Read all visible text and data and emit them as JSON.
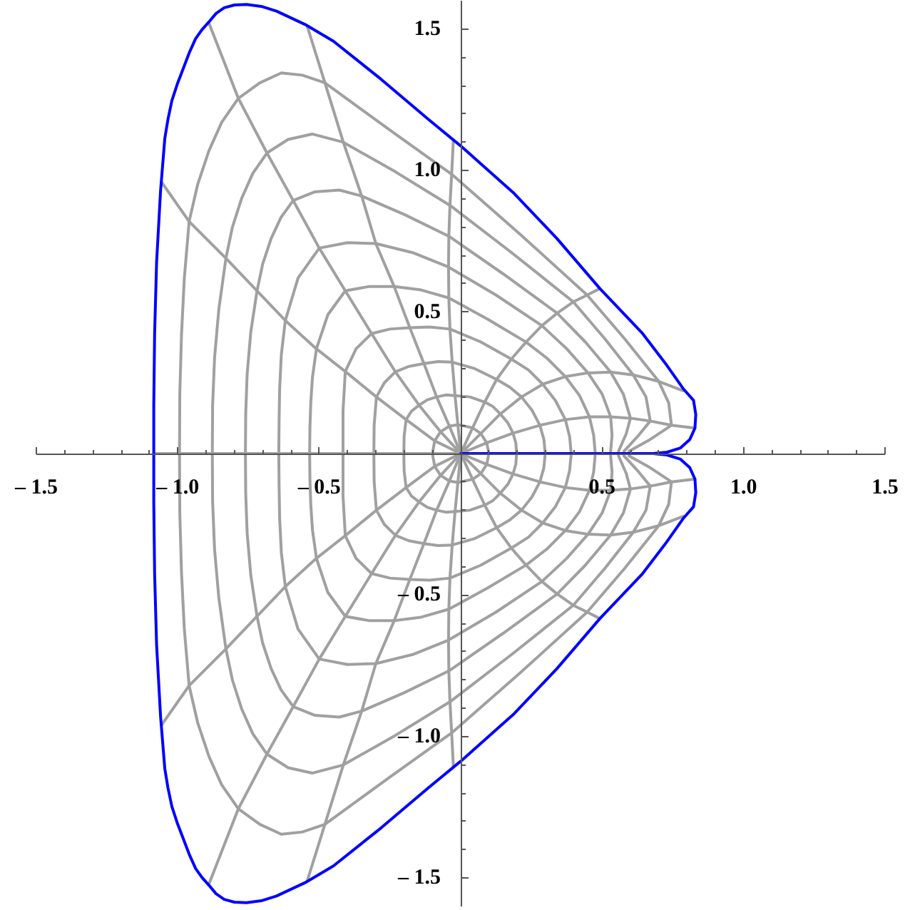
{
  "chart_data": {
    "type": "line",
    "xlim": [
      -1.5,
      1.5
    ],
    "ylim": [
      -1.6,
      1.6
    ],
    "xticks": [
      {
        "value": -1.5,
        "label": "– 1.5"
      },
      {
        "value": -1.4,
        "label": null
      },
      {
        "value": -1.3,
        "label": null
      },
      {
        "value": -1.2,
        "label": null
      },
      {
        "value": -1.1,
        "label": null
      },
      {
        "value": -1,
        "label": "– 1.0"
      },
      {
        "value": -0.9,
        "label": null
      },
      {
        "value": -0.8,
        "label": null
      },
      {
        "value": -0.7,
        "label": null
      },
      {
        "value": -0.6,
        "label": null
      },
      {
        "value": -0.5,
        "label": "– 0.5"
      },
      {
        "value": -0.4,
        "label": null
      },
      {
        "value": -0.3,
        "label": null
      },
      {
        "value": -0.2,
        "label": null
      },
      {
        "value": -0.1,
        "label": null
      },
      {
        "value": 0.1,
        "label": null
      },
      {
        "value": 0.2,
        "label": null
      },
      {
        "value": 0.3,
        "label": null
      },
      {
        "value": 0.4,
        "label": null
      },
      0.5,
      {
        "value": 0.6,
        "label": null
      },
      {
        "value": 0.7,
        "label": null
      },
      {
        "value": 0.8,
        "label": null
      },
      {
        "value": 0.9,
        "label": null
      },
      {
        "value": 1,
        "label": "1.0"
      },
      {
        "value": 1.1,
        "label": null
      },
      {
        "value": 1.2,
        "label": null
      },
      {
        "value": 1.3,
        "label": null
      },
      {
        "value": 1.4,
        "label": null
      },
      1.5
    ],
    "yticks": [
      {
        "value": -1.5,
        "label": "– 1.5"
      },
      {
        "value": -1.4,
        "label": null
      },
      {
        "value": -1.3,
        "label": null
      },
      {
        "value": -1.2,
        "label": null
      },
      {
        "value": -1.1,
        "label": null
      },
      {
        "value": -1,
        "label": "– 1.0"
      },
      {
        "value": -0.9,
        "label": null
      },
      {
        "value": -0.8,
        "label": null
      },
      {
        "value": -0.7,
        "label": null
      },
      {
        "value": -0.6,
        "label": null
      },
      {
        "value": -0.5,
        "label": "– 0.5"
      },
      {
        "value": -0.4,
        "label": null
      },
      {
        "value": -0.3,
        "label": null
      },
      {
        "value": -0.2,
        "label": null
      },
      {
        "value": -0.1,
        "label": null
      },
      {
        "value": 0.1,
        "label": null
      },
      {
        "value": 0.2,
        "label": null
      },
      {
        "value": 0.3,
        "label": null
      },
      {
        "value": 0.4,
        "label": null
      },
      0.5,
      {
        "value": 0.6,
        "label": null
      },
      {
        "value": 0.7,
        "label": null
      },
      {
        "value": 0.8,
        "label": null
      },
      {
        "value": 0.9,
        "label": null
      },
      {
        "value": 1,
        "label": "1.0"
      },
      {
        "value": 1.1,
        "label": null
      },
      {
        "value": 1.2,
        "label": null
      },
      {
        "value": 1.3,
        "label": null
      },
      {
        "value": 1.4,
        "label": null
      },
      1.5
    ],
    "series": [
      {
        "color": "#a0a0a0",
        "x": [
          0.098,
          0.092,
          0.071,
          0.042,
          -0.01,
          -0.04,
          -0.071,
          -0.092,
          -0.1,
          -0.092,
          -0.071,
          -0.04,
          -0.01,
          0.042,
          0.071,
          0.092,
          0.098
        ],
        "values": [
          0.008,
          0.038,
          0.071,
          0.091,
          0.102,
          0.097,
          0.077,
          0.045,
          0,
          -0.045,
          -0.077,
          -0.097,
          -0.102,
          -0.091,
          -0.071,
          -0.038,
          -0.008
        ]
      },
      {
        "color": "#a0a0a0",
        "x": [
          0.197,
          0.195,
          0.185,
          0.167,
          0.14,
          0.114,
          0.085,
          0.033,
          -0.02,
          -0.053,
          -0.085,
          -0.118,
          -0.147,
          -0.174,
          -0.193,
          -0.2,
          -0.201,
          -0.2,
          -0.193,
          -0.174,
          -0.147,
          -0.118,
          -0.085,
          -0.053,
          -0.02,
          0.033,
          0.085,
          0.114,
          0.14,
          0.167,
          0.185,
          0.195,
          0.197
        ],
        "values": [
          0.008,
          0.037,
          0.072,
          0.108,
          0.14,
          0.166,
          0.182,
          0.2,
          0.205,
          0.207,
          0.2,
          0.19,
          0.171,
          0.15,
          0.12,
          0.062,
          0,
          -0.062,
          -0.12,
          -0.15,
          -0.171,
          -0.19,
          -0.2,
          -0.207,
          -0.205,
          -0.2,
          -0.182,
          -0.166,
          -0.14,
          -0.108,
          -0.072,
          -0.037,
          -0.008
        ]
      },
      {
        "color": "#a0a0a0",
        "x": [
          0.298,
          0.294,
          0.28,
          0.252,
          0.215,
          0.173,
          0.127,
          0.05,
          -0.03,
          -0.08,
          -0.13,
          -0.183,
          -0.231,
          -0.27,
          -0.298,
          -0.306,
          -0.307,
          -0.306,
          -0.298,
          -0.27,
          -0.231,
          -0.183,
          -0.13,
          -0.08,
          -0.03,
          0.05,
          0.127,
          0.173,
          0.215,
          0.252,
          0.28,
          0.294,
          0.298
        ],
        "values": [
          0.008,
          0.05,
          0.1,
          0.153,
          0.2,
          0.235,
          0.262,
          0.3,
          0.323,
          0.325,
          0.318,
          0.308,
          0.289,
          0.25,
          0.2,
          0.1,
          0,
          -0.1,
          -0.2,
          -0.25,
          -0.289,
          -0.308,
          -0.318,
          -0.325,
          -0.323,
          -0.3,
          -0.262,
          -0.235,
          -0.2,
          -0.153,
          -0.1,
          -0.05,
          -0.008
        ]
      },
      {
        "color": "#a0a0a0",
        "x": [
          0.39,
          0.385,
          0.37,
          0.335,
          0.29,
          0.24,
          0.179,
          0.07,
          -0.038,
          -0.11,
          -0.18,
          -0.25,
          -0.315,
          -0.37,
          -0.408,
          -0.416,
          -0.416,
          -0.416,
          -0.408,
          -0.37,
          -0.315,
          -0.25,
          -0.18,
          -0.11,
          -0.038,
          0.07,
          0.179,
          0.24,
          0.29,
          0.335,
          0.37,
          0.385,
          0.39
        ],
        "values": [
          0.008,
          0.06,
          0.12,
          0.187,
          0.245,
          0.295,
          0.334,
          0.395,
          0.44,
          0.447,
          0.445,
          0.44,
          0.424,
          0.37,
          0.29,
          0.15,
          0,
          -0.15,
          -0.29,
          -0.37,
          -0.424,
          -0.44,
          -0.445,
          -0.447,
          -0.44,
          -0.395,
          -0.334,
          -0.295,
          -0.245,
          -0.187,
          -0.12,
          -0.06,
          -0.008
        ]
      },
      {
        "color": "#a0a0a0",
        "x": [
          0.475,
          0.47,
          0.455,
          0.42,
          0.37,
          0.305,
          0.231,
          0.095,
          -0.042,
          -0.14,
          -0.235,
          -0.325,
          -0.408,
          -0.47,
          -0.51,
          -0.524,
          -0.53,
          -0.533,
          -0.534,
          -0.533,
          -0.53,
          -0.524,
          -0.51,
          -0.47,
          -0.408,
          -0.325,
          -0.235,
          -0.14,
          -0.042,
          0.095,
          0.231,
          0.305,
          0.37,
          0.42,
          0.455,
          0.47,
          0.475
        ],
        "values": [
          0.008,
          0.065,
          0.13,
          0.205,
          0.272,
          0.337,
          0.394,
          0.475,
          0.55,
          0.578,
          0.59,
          0.59,
          0.575,
          0.49,
          0.37,
          0.27,
          0.18,
          0.09,
          0,
          -0.09,
          -0.18,
          -0.27,
          -0.37,
          -0.49,
          -0.575,
          -0.59,
          -0.59,
          -0.578,
          -0.55,
          -0.475,
          -0.394,
          -0.337,
          -0.272,
          -0.205,
          -0.13,
          -0.065,
          -0.008
        ]
      },
      {
        "color": "#a0a0a0",
        "x": [
          0.53,
          0.535,
          0.53,
          0.5,
          0.45,
          0.375,
          0.287,
          0.125,
          -0.043,
          -0.17,
          -0.3,
          -0.4,
          -0.5,
          -0.575,
          -0.62,
          -0.634,
          -0.64,
          -0.642,
          -0.643,
          -0.642,
          -0.64,
          -0.634,
          -0.62,
          -0.575,
          -0.5,
          -0.4,
          -0.3,
          -0.17,
          -0.043,
          0.125,
          0.287,
          0.375,
          0.45,
          0.5,
          0.53,
          0.535,
          0.53
        ],
        "values": [
          0.008,
          0.065,
          0.13,
          0.21,
          0.285,
          0.37,
          0.452,
          0.56,
          0.659,
          0.71,
          0.742,
          0.745,
          0.726,
          0.62,
          0.47,
          0.35,
          0.23,
          0.115,
          0,
          -0.115,
          -0.23,
          -0.35,
          -0.47,
          -0.62,
          -0.726,
          -0.745,
          -0.742,
          -0.71,
          -0.659,
          -0.56,
          -0.452,
          -0.37,
          -0.285,
          -0.21,
          -0.13,
          -0.065,
          -0.008
        ]
      },
      {
        "color": "#a0a0a0",
        "x": [
          0.558,
          0.585,
          0.6,
          0.575,
          0.53,
          0.44,
          0.341,
          0.15,
          -0.042,
          -0.2,
          -0.35,
          -0.429,
          -0.515,
          -0.592,
          -0.635,
          -0.67,
          -0.7,
          -0.72,
          -0.742,
          -0.755,
          -0.76,
          -0.761,
          -0.76,
          -0.755,
          -0.742,
          -0.72,
          -0.7,
          -0.67,
          -0.635,
          -0.592,
          -0.515,
          -0.429,
          -0.35,
          -0.2,
          -0.042,
          0.15,
          0.341,
          0.44,
          0.53,
          0.575,
          0.6,
          0.585,
          0.558
        ],
        "values": [
          0.008,
          0.07,
          0.125,
          0.21,
          0.288,
          0.395,
          0.496,
          0.635,
          0.768,
          0.845,
          0.91,
          0.931,
          0.925,
          0.894,
          0.835,
          0.76,
          0.67,
          0.575,
          0.43,
          0.28,
          0.14,
          0,
          -0.14,
          -0.28,
          -0.43,
          -0.575,
          -0.67,
          -0.76,
          -0.835,
          -0.894,
          -0.925,
          -0.931,
          -0.91,
          -0.845,
          -0.768,
          -0.635,
          -0.496,
          -0.395,
          -0.288,
          -0.21,
          -0.125,
          -0.07,
          -0.008
        ]
      },
      {
        "color": "#a0a0a0",
        "x": [
          0.577,
          0.625,
          0.67,
          0.655,
          0.61,
          0.51,
          0.398,
          0.18,
          -0.038,
          -0.23,
          -0.415,
          -0.525,
          -0.61,
          -0.685,
          -0.735,
          -0.775,
          -0.807,
          -0.83,
          -0.855,
          -0.87,
          -0.877,
          -0.878,
          -0.877,
          -0.87,
          -0.855,
          -0.83,
          -0.807,
          -0.775,
          -0.735,
          -0.685,
          -0.61,
          -0.525,
          -0.415,
          -0.23,
          -0.038,
          0.18,
          0.398,
          0.51,
          0.61,
          0.655,
          0.67,
          0.625,
          0.577
        ],
        "values": [
          0.008,
          0.06,
          0.115,
          0.2,
          0.278,
          0.405,
          0.536,
          0.71,
          0.877,
          0.995,
          1.1,
          1.129,
          1.11,
          1.062,
          0.99,
          0.9,
          0.8,
          0.69,
          0.51,
          0.34,
          0.17,
          0,
          -0.17,
          -0.34,
          -0.51,
          -0.69,
          -0.8,
          -0.9,
          -0.99,
          -1.062,
          -1.11,
          -1.129,
          -1.1,
          -0.995,
          -0.877,
          -0.71,
          -0.536,
          -0.405,
          -0.278,
          -0.2,
          -0.115,
          -0.06,
          -0.008
        ]
      },
      {
        "color": "#a0a0a0",
        "x": [
          0.595,
          0.67,
          0.745,
          0.735,
          0.7,
          0.58,
          0.447,
          0.21,
          -0.032,
          -0.26,
          -0.48,
          -0.56,
          -0.634,
          -0.71,
          -0.786,
          -0.845,
          -0.89,
          -0.93,
          -0.96,
          -0.977,
          -0.987,
          -0.993,
          -0.994,
          -0.993,
          -0.987,
          -0.977,
          -0.96,
          -0.93,
          -0.89,
          -0.845,
          -0.786,
          -0.71,
          -0.634,
          -0.56,
          -0.48,
          -0.26,
          -0.032,
          0.21,
          0.447,
          0.58,
          0.7,
          0.735,
          0.745,
          0.67,
          0.595
        ],
        "values": [
          0.008,
          0.05,
          0.1,
          0.18,
          0.255,
          0.405,
          0.56,
          0.775,
          0.987,
          1.15,
          1.31,
          1.337,
          1.345,
          1.31,
          1.255,
          1.17,
          1.07,
          0.95,
          0.82,
          0.62,
          0.42,
          0.21,
          0,
          -0.21,
          -0.42,
          -0.62,
          -0.82,
          -0.95,
          -1.07,
          -1.17,
          -1.255,
          -1.31,
          -1.345,
          -1.337,
          -1.31,
          -1.15,
          -0.987,
          -0.775,
          -0.56,
          -0.405,
          -0.255,
          -0.18,
          -0.1,
          -0.05,
          -0.008
        ]
      },
      {
        "color": "#a0a0a0",
        "x": [
          0.828,
          0.745,
          0.67,
          0.6,
          0.53,
          0.455,
          0.37,
          0.28,
          0.185,
          0.092,
          0,
          -0.092,
          -0.193,
          -0.298,
          -0.408,
          -0.51,
          -0.62,
          -0.72,
          -0.83,
          -0.96,
          -1.058
        ],
        "values": [
          0.09,
          0.1,
          0.115,
          0.125,
          0.13,
          0.13,
          0.12,
          0.1,
          0.072,
          0.038,
          0,
          -0.045,
          -0.12,
          -0.2,
          -0.29,
          -0.37,
          -0.47,
          -0.575,
          -0.69,
          -0.82,
          -0.96
        ]
      },
      {
        "color": "#a0a0a0",
        "x": [
          0.786,
          0.7,
          0.61,
          0.53,
          0.45,
          0.37,
          0.29,
          0.215,
          0.14,
          0.071,
          0,
          -0.071,
          -0.147,
          -0.231,
          -0.315,
          -0.408,
          -0.5,
          -0.592,
          -0.685,
          -0.786,
          -0.891
        ],
        "values": [
          0.222,
          0.255,
          0.278,
          0.288,
          0.285,
          0.272,
          0.245,
          0.2,
          0.14,
          0.071,
          0,
          -0.077,
          -0.171,
          -0.289,
          -0.424,
          -0.575,
          -0.726,
          -0.894,
          -1.062,
          -1.255,
          -1.524
        ]
      },
      {
        "color": "#a0a0a0",
        "x": [
          0.492,
          0.447,
          0.398,
          0.341,
          0.287,
          0.231,
          0.179,
          0.127,
          0.085,
          0.042,
          0,
          -0.04,
          -0.085,
          -0.13,
          -0.18,
          -0.235,
          -0.3,
          -0.35,
          -0.415,
          -0.48,
          -0.542
        ],
        "values": [
          0.583,
          0.56,
          0.536,
          0.496,
          0.452,
          0.394,
          0.334,
          0.262,
          0.182,
          0.091,
          0,
          -0.097,
          -0.2,
          -0.318,
          -0.445,
          -0.59,
          -0.742,
          -0.91,
          -1.1,
          -1.31,
          -1.508
        ]
      },
      {
        "color": "#a0a0a0",
        "x": [
          -0.026,
          -0.032,
          -0.038,
          -0.042,
          -0.043,
          -0.042,
          -0.038,
          -0.03,
          -0.02,
          -0.01,
          0,
          -0.01,
          -0.02,
          -0.03,
          -0.038,
          -0.042,
          -0.043,
          -0.042,
          -0.038,
          -0.032,
          -0.026
        ],
        "values": [
          1.105,
          0.987,
          0.877,
          0.768,
          0.659,
          0.55,
          0.44,
          0.323,
          0.205,
          0.102,
          0,
          -0.102,
          -0.205,
          -0.323,
          -0.44,
          -0.55,
          -0.659,
          -0.768,
          -0.877,
          -0.987,
          -1.105
        ]
      },
      {
        "color": "#a0a0a0",
        "x": [
          -0.542,
          -0.48,
          -0.415,
          -0.35,
          -0.3,
          -0.235,
          -0.18,
          -0.13,
          -0.085,
          -0.04,
          0,
          0.042,
          0.085,
          0.127,
          0.179,
          0.231,
          0.287,
          0.341,
          0.398,
          0.447,
          0.492
        ],
        "values": [
          1.508,
          1.31,
          1.1,
          0.91,
          0.742,
          0.59,
          0.445,
          0.318,
          0.2,
          0.097,
          0,
          -0.091,
          -0.182,
          -0.262,
          -0.334,
          -0.394,
          -0.452,
          -0.496,
          -0.536,
          -0.56,
          -0.583
        ]
      },
      {
        "color": "#a0a0a0",
        "x": [
          -0.891,
          -0.786,
          -0.685,
          -0.592,
          -0.5,
          -0.408,
          -0.315,
          -0.231,
          -0.147,
          -0.071,
          0,
          0.071,
          0.14,
          0.215,
          0.29,
          0.37,
          0.45,
          0.53,
          0.61,
          0.7,
          0.786
        ],
        "values": [
          1.524,
          1.255,
          1.062,
          0.894,
          0.726,
          0.575,
          0.424,
          0.289,
          0.171,
          0.077,
          0,
          -0.071,
          -0.14,
          -0.2,
          -0.245,
          -0.272,
          -0.285,
          -0.288,
          -0.278,
          -0.255,
          -0.222
        ]
      },
      {
        "color": "#a0a0a0",
        "x": [
          -1.058,
          -0.96,
          -0.83,
          -0.72,
          -0.62,
          -0.51,
          -0.408,
          -0.298,
          -0.193,
          -0.092,
          0,
          0.092,
          0.185,
          0.28,
          0.37,
          0.455,
          0.53,
          0.6,
          0.67,
          0.745,
          0.828
        ],
        "values": [
          0.96,
          0.82,
          0.69,
          0.575,
          0.47,
          0.37,
          0.29,
          0.2,
          0.12,
          0.045,
          0,
          -0.038,
          -0.072,
          -0.1,
          -0.12,
          -0.13,
          -0.13,
          -0.125,
          -0.115,
          -0.1,
          -0.09
        ]
      },
      {
        "color": "#a0a0a0",
        "x": [
          0,
          -1.085
        ],
        "values": [
          0,
          0
        ]
      },
      {
        "color": "#0000ff",
        "x": [
          0,
          0.68,
          0.73,
          0.777,
          0.81,
          0.828,
          0.831,
          0.823,
          0.786,
          0.727,
          0.643,
          0.492,
          0.34,
          0.189,
          0,
          -0.113,
          -0.282,
          -0.45,
          -0.55,
          -0.651,
          -0.705,
          -0.757,
          -0.8,
          -0.836,
          -0.865,
          -0.891,
          -0.915,
          -0.937,
          -0.96,
          -0.979,
          -1.002,
          -1.021,
          -1.035,
          -1.046,
          -1.061,
          -1.075,
          -1.082,
          -1.085,
          -1.085,
          -1.085,
          -1.082,
          -1.075,
          -1.061,
          -1.046,
          -1.035,
          -1.021,
          -1.002,
          -0.979,
          -0.96,
          -0.937,
          -0.915,
          -0.891,
          -0.865,
          -0.836,
          -0.8,
          -0.757,
          -0.705,
          -0.651,
          -0.55,
          -0.45,
          -0.282,
          -0.113,
          0,
          0.189,
          0.34,
          0.492,
          0.643,
          0.727,
          0.786,
          0.823,
          0.831,
          0.828,
          0.81,
          0.777,
          0.73,
          0.68
        ],
        "values": [
          0,
          0,
          0.005,
          0.02,
          0.05,
          0.09,
          0.138,
          0.188,
          0.23,
          0.314,
          0.424,
          0.583,
          0.76,
          0.919,
          1.087,
          1.18,
          1.323,
          1.457,
          1.516,
          1.563,
          1.58,
          1.587,
          1.585,
          1.575,
          1.555,
          1.524,
          1.497,
          1.466,
          1.415,
          1.365,
          1.305,
          1.247,
          1.18,
          1.113,
          0.928,
          0.676,
          0.424,
          0.171,
          0,
          -0.171,
          -0.424,
          -0.676,
          -0.928,
          -1.113,
          -1.18,
          -1.247,
          -1.305,
          -1.365,
          -1.415,
          -1.466,
          -1.497,
          -1.524,
          -1.555,
          -1.575,
          -1.585,
          -1.587,
          -1.58,
          -1.563,
          -1.516,
          -1.457,
          -1.323,
          -1.18,
          -1.087,
          -0.919,
          -0.76,
          -0.583,
          -0.424,
          -0.314,
          -0.23,
          -0.188,
          -0.138,
          -0.09,
          -0.05,
          -0.02,
          -0.005,
          0
        ]
      }
    ]
  }
}
